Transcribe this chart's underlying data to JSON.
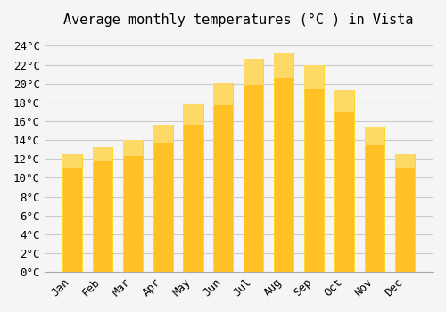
{
  "title": "Average monthly temperatures (°C ) in Vista",
  "months": [
    "Jan",
    "Feb",
    "Mar",
    "Apr",
    "May",
    "Jun",
    "Jul",
    "Aug",
    "Sep",
    "Oct",
    "Nov",
    "Dec"
  ],
  "temperatures": [
    12.5,
    13.3,
    14.0,
    15.6,
    17.8,
    20.1,
    22.6,
    23.3,
    22.0,
    19.3,
    15.3,
    12.5
  ],
  "bar_color_main": "#FFC125",
  "bar_color_edge": "#FFD700",
  "bar_color_gradient_top": "#FFD966",
  "ylim": [
    0,
    25
  ],
  "yticks": [
    0,
    2,
    4,
    6,
    8,
    10,
    12,
    14,
    16,
    18,
    20,
    22,
    24
  ],
  "grid_color": "#cccccc",
  "bg_color": "#f5f5f5",
  "title_fontsize": 11,
  "tick_fontsize": 9
}
